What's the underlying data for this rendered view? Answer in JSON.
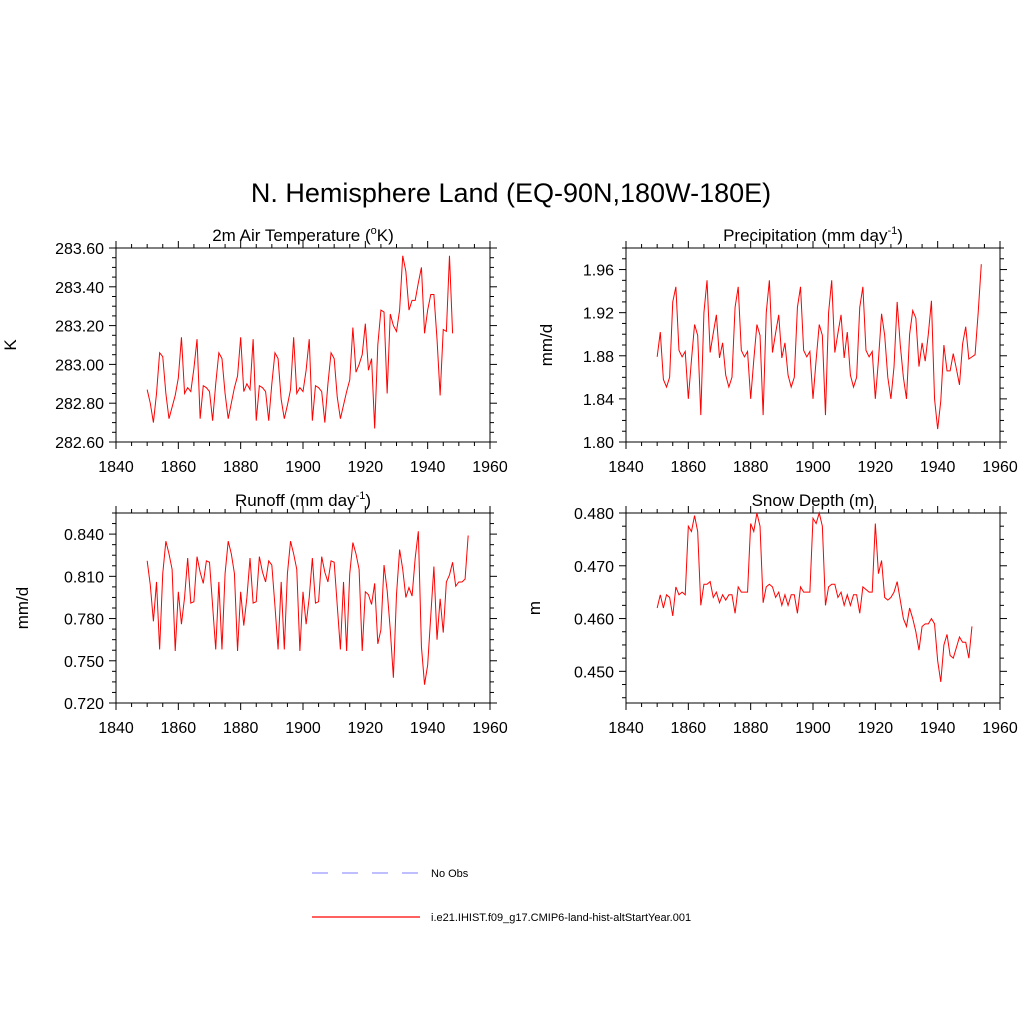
{
  "figure": {
    "title": "N. Hemisphere Land (EQ-90N,180W-180E)"
  },
  "legend": {
    "placement": "bottom-center",
    "entries": [
      {
        "label": "No Obs",
        "color": "#9999ff",
        "style": "dashed"
      },
      {
        "label": "i.e21.IHIST.f09_g17.CMIP6-land-hist-altStartYear.001",
        "color": "#ff0000",
        "style": "solid"
      }
    ]
  },
  "chart_data": [
    {
      "type": "line",
      "title": "2m Air Temperature (°K)",
      "title_parts": [
        "2m Air Temperature (",
        "o",
        "K)"
      ],
      "ylabel": "K",
      "xlim": [
        1840,
        1960
      ],
      "ylim": [
        282.6,
        283.6
      ],
      "xticks": [
        1840,
        1860,
        1880,
        1900,
        1920,
        1940,
        1960
      ],
      "yticks": [
        282.6,
        282.8,
        283.0,
        283.2,
        283.4,
        283.6
      ],
      "ytick_labels": [
        "282.60",
        "282.80",
        "283.00",
        "283.20",
        "283.40",
        "283.60"
      ],
      "x_start": 1850,
      "series": [
        {
          "name": "i.e21.IHIST.f09_g17.CMIP6-land-hist-altStartYear.001",
          "color": "#ff0000",
          "values": [
            282.87,
            282.8,
            282.7,
            282.85,
            283.06,
            283.04,
            282.85,
            282.72,
            282.78,
            282.84,
            282.93,
            283.14,
            282.85,
            282.88,
            282.86,
            282.98,
            283.13,
            282.72,
            282.89,
            282.88,
            282.86,
            282.71,
            282.9,
            283.06,
            283.03,
            282.85,
            282.72,
            282.8,
            282.88,
            282.94,
            283.14,
            282.86,
            282.9,
            282.87,
            283.13,
            282.71,
            282.89,
            282.88,
            282.86,
            282.71,
            282.9,
            283.06,
            283.03,
            282.82,
            282.72,
            282.79,
            282.87,
            283.14,
            282.85,
            282.88,
            282.86,
            282.97,
            283.13,
            282.71,
            282.89,
            282.88,
            282.86,
            282.7,
            282.9,
            283.06,
            283.03,
            282.83,
            282.72,
            282.79,
            282.86,
            282.92,
            283.19,
            282.96,
            283.0,
            283.05,
            283.21,
            282.97,
            283.03,
            282.67,
            283.1,
            283.28,
            283.27,
            282.85,
            283.26,
            283.2,
            283.17,
            283.28,
            283.56,
            283.48,
            283.28,
            283.33,
            283.33,
            283.42,
            283.5,
            283.16,
            283.28,
            283.36,
            283.36,
            283.13,
            282.84,
            283.18,
            283.17,
            283.56,
            283.16
          ]
        }
      ]
    },
    {
      "type": "line",
      "title": "Precipitation (mm day-1)",
      "title_parts": [
        "Precipitation (mm day",
        "-1",
        ")"
      ],
      "ylabel": "mm/d",
      "xlim": [
        1840,
        1960
      ],
      "ylim": [
        1.8,
        1.98
      ],
      "xticks": [
        1840,
        1860,
        1880,
        1900,
        1920,
        1940,
        1960
      ],
      "yticks": [
        1.8,
        1.84,
        1.88,
        1.92,
        1.96
      ],
      "ytick_labels": [
        "1.80",
        "1.84",
        "1.88",
        "1.92",
        "1.96"
      ],
      "x_start": 1850,
      "series": [
        {
          "name": "i.e21.IHIST.f09_g17.CMIP6-land-hist-altStartYear.001",
          "color": "#ff0000",
          "values": [
            1.879,
            1.902,
            1.858,
            1.851,
            1.86,
            1.93,
            1.944,
            1.885,
            1.879,
            1.884,
            1.84,
            1.876,
            1.909,
            1.899,
            1.825,
            1.92,
            1.95,
            1.883,
            1.901,
            1.918,
            1.878,
            1.892,
            1.862,
            1.851,
            1.86,
            1.925,
            1.944,
            1.885,
            1.879,
            1.884,
            1.84,
            1.876,
            1.909,
            1.899,
            1.825,
            1.92,
            1.95,
            1.883,
            1.901,
            1.918,
            1.878,
            1.892,
            1.862,
            1.851,
            1.86,
            1.925,
            1.944,
            1.885,
            1.879,
            1.884,
            1.84,
            1.876,
            1.909,
            1.899,
            1.825,
            1.92,
            1.95,
            1.883,
            1.901,
            1.918,
            1.878,
            1.902,
            1.862,
            1.851,
            1.86,
            1.925,
            1.944,
            1.885,
            1.879,
            1.884,
            1.84,
            1.876,
            1.919,
            1.899,
            1.86,
            1.84,
            1.87,
            1.93,
            1.89,
            1.86,
            1.84,
            1.9,
            1.922,
            1.915,
            1.87,
            1.892,
            1.875,
            1.9,
            1.931,
            1.84,
            1.812,
            1.838,
            1.89,
            1.866,
            1.866,
            1.882,
            1.868,
            1.853,
            1.891,
            1.907,
            1.877,
            1.879,
            1.881,
            1.92,
            1.965
          ]
        }
      ]
    },
    {
      "type": "line",
      "title": "Runoff (mm day-1)",
      "title_parts": [
        "Runoff (mm day",
        "-1",
        ")"
      ],
      "ylabel": "mm/d",
      "xlim": [
        1840,
        1960
      ],
      "ylim": [
        0.72,
        0.855
      ],
      "xticks": [
        1840,
        1860,
        1880,
        1900,
        1920,
        1940,
        1960
      ],
      "yticks": [
        0.72,
        0.75,
        0.78,
        0.81,
        0.84
      ],
      "ytick_labels": [
        "0.720",
        "0.750",
        "0.780",
        "0.810",
        "0.840"
      ],
      "x_start": 1850,
      "series": [
        {
          "name": "i.e21.IHIST.f09_g17.CMIP6-land-hist-altStartYear.001",
          "color": "#ff0000",
          "values": [
            0.821,
            0.804,
            0.778,
            0.806,
            0.758,
            0.812,
            0.835,
            0.826,
            0.815,
            0.757,
            0.799,
            0.776,
            0.795,
            0.823,
            0.791,
            0.792,
            0.824,
            0.813,
            0.805,
            0.821,
            0.82,
            0.789,
            0.758,
            0.806,
            0.758,
            0.812,
            0.835,
            0.826,
            0.812,
            0.757,
            0.799,
            0.775,
            0.795,
            0.823,
            0.791,
            0.792,
            0.824,
            0.813,
            0.806,
            0.821,
            0.818,
            0.789,
            0.758,
            0.806,
            0.758,
            0.812,
            0.835,
            0.826,
            0.815,
            0.757,
            0.799,
            0.776,
            0.795,
            0.823,
            0.791,
            0.792,
            0.824,
            0.813,
            0.806,
            0.821,
            0.82,
            0.789,
            0.758,
            0.806,
            0.757,
            0.812,
            0.834,
            0.826,
            0.815,
            0.757,
            0.799,
            0.797,
            0.79,
            0.805,
            0.762,
            0.772,
            0.818,
            0.8,
            0.772,
            0.738,
            0.797,
            0.829,
            0.815,
            0.795,
            0.802,
            0.796,
            0.823,
            0.842,
            0.76,
            0.733,
            0.747,
            0.782,
            0.817,
            0.765,
            0.794,
            0.77,
            0.806,
            0.811,
            0.82,
            0.803,
            0.806,
            0.806,
            0.808,
            0.839
          ]
        }
      ]
    },
    {
      "type": "line",
      "title": "Snow Depth (m)",
      "title_parts": [
        "Snow Depth (m)"
      ],
      "ylabel": "m",
      "xlim": [
        1840,
        1960
      ],
      "ylim": [
        0.444,
        0.48
      ],
      "xticks": [
        1840,
        1860,
        1880,
        1900,
        1920,
        1940,
        1960
      ],
      "yticks": [
        0.45,
        0.46,
        0.47,
        0.48
      ],
      "ytick_labels": [
        "0.450",
        "0.460",
        "0.470",
        "0.480"
      ],
      "x_start": 1850,
      "series": [
        {
          "name": "i.e21.IHIST.f09_g17.CMIP6-land-hist-altStartYear.001",
          "color": "#ff0000",
          "values": [
            0.462,
            0.4645,
            0.462,
            0.4645,
            0.464,
            0.4605,
            0.466,
            0.4645,
            0.465,
            0.4645,
            0.4775,
            0.4765,
            0.4795,
            0.4765,
            0.4625,
            0.4665,
            0.4665,
            0.467,
            0.464,
            0.465,
            0.463,
            0.4645,
            0.4635,
            0.4645,
            0.4645,
            0.461,
            0.466,
            0.465,
            0.465,
            0.465,
            0.478,
            0.4765,
            0.48,
            0.4775,
            0.463,
            0.466,
            0.4665,
            0.466,
            0.464,
            0.465,
            0.4625,
            0.4645,
            0.4625,
            0.4645,
            0.4645,
            0.461,
            0.466,
            0.465,
            0.465,
            0.465,
            0.479,
            0.478,
            0.48,
            0.4775,
            0.4625,
            0.466,
            0.4665,
            0.4665,
            0.464,
            0.465,
            0.4625,
            0.4645,
            0.4625,
            0.4645,
            0.4645,
            0.461,
            0.466,
            0.4655,
            0.465,
            0.465,
            0.478,
            0.4685,
            0.471,
            0.464,
            0.4635,
            0.464,
            0.465,
            0.467,
            0.4635,
            0.46,
            0.4585,
            0.462,
            0.46,
            0.4575,
            0.454,
            0.4585,
            0.459,
            0.459,
            0.46,
            0.459,
            0.452,
            0.448,
            0.455,
            0.457,
            0.453,
            0.4525,
            0.4545,
            0.4565,
            0.4555,
            0.4555,
            0.4525,
            0.4585
          ]
        }
      ]
    }
  ]
}
